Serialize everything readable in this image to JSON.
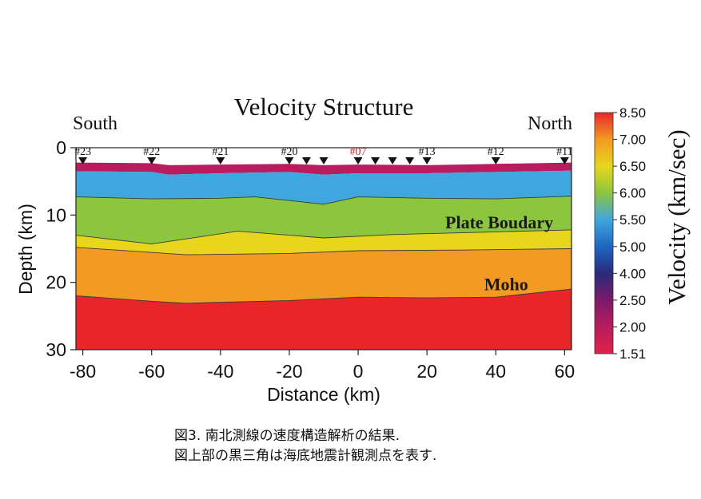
{
  "chart_data": {
    "type": "heatmap",
    "title": "Velocity Structure",
    "xlabel": "Distance (km)",
    "ylabel": "Depth (km)",
    "xlim": [
      -82,
      62
    ],
    "ylim": [
      30,
      0
    ],
    "x_ticks": [
      -80,
      -60,
      -40,
      -20,
      0,
      20,
      40,
      60
    ],
    "y_ticks": [
      0,
      10,
      20,
      30
    ],
    "direction_left": "South",
    "direction_right": "North",
    "colorbar": {
      "label": "Velocity (km/sec)",
      "ticks": [
        "8.50",
        "7.00",
        "6.50",
        "6.00",
        "5.50",
        "5.00",
        "4.00",
        "2.50",
        "2.00",
        "1.51"
      ]
    },
    "colorscale": [
      {
        "v": 1.51,
        "color": "#e2214a"
      },
      {
        "v": 2.0,
        "color": "#b81c5e"
      },
      {
        "v": 2.5,
        "color": "#7d1a6a"
      },
      {
        "v": 4.0,
        "color": "#2a2a7a"
      },
      {
        "v": 5.0,
        "color": "#1e66c0"
      },
      {
        "v": 5.5,
        "color": "#3fa7de"
      },
      {
        "v": 6.0,
        "color": "#8cc63f"
      },
      {
        "v": 6.5,
        "color": "#e8d61c"
      },
      {
        "v": 7.0,
        "color": "#f29a22"
      },
      {
        "v": 8.5,
        "color": "#e8262a"
      }
    ],
    "stations": [
      {
        "name": "#23",
        "x": -80,
        "highlight": false
      },
      {
        "name": "#22",
        "x": -60,
        "highlight": false
      },
      {
        "name": "#21",
        "x": -40,
        "highlight": false
      },
      {
        "name": "#20",
        "x": -20,
        "highlight": false
      },
      {
        "name": "",
        "x": -15,
        "highlight": false
      },
      {
        "name": "",
        "x": -10,
        "highlight": false
      },
      {
        "name": "#07",
        "x": 0,
        "highlight": true
      },
      {
        "name": "",
        "x": 5,
        "highlight": false
      },
      {
        "name": "",
        "x": 10,
        "highlight": false
      },
      {
        "name": "",
        "x": 15,
        "highlight": false
      },
      {
        "name": "#13",
        "x": 20,
        "highlight": false
      },
      {
        "name": "#12",
        "x": 40,
        "highlight": false
      },
      {
        "name": "#11",
        "x": 60,
        "highlight": false
      }
    ],
    "annotations": [
      {
        "text": "Plate Boudary",
        "x": 41,
        "depth": 11
      },
      {
        "text": "Moho",
        "x": 43,
        "depth": 20.2
      }
    ],
    "layers": [
      {
        "name": "seafloor",
        "x": [
          -82,
          -60,
          -55,
          -40,
          -20,
          -10,
          0,
          20,
          40,
          62
        ],
        "depth": [
          2.2,
          2.3,
          2.6,
          2.5,
          2.4,
          2.6,
          2.5,
          2.6,
          2.4,
          2.2
        ]
      },
      {
        "name": "upper-crust-top",
        "x": [
          -82,
          -60,
          -55,
          -40,
          -20,
          -10,
          0,
          20,
          40,
          62
        ],
        "depth": [
          3.5,
          3.6,
          4.0,
          3.8,
          3.6,
          4.0,
          3.8,
          3.8,
          3.6,
          3.4
        ]
      },
      {
        "name": "upper-crust-base",
        "x": [
          -82,
          -60,
          -40,
          -30,
          -10,
          0,
          20,
          40,
          62
        ],
        "depth": [
          7.3,
          7.6,
          7.5,
          7.3,
          8.4,
          7.3,
          7.5,
          7.6,
          7.2
        ]
      },
      {
        "name": "plate-boundary",
        "x": [
          -82,
          -60,
          -35,
          -10,
          10,
          40,
          62
        ],
        "depth": [
          13.0,
          14.3,
          12.4,
          13.4,
          12.9,
          12.5,
          12.2
        ]
      },
      {
        "name": "lower-crust",
        "x": [
          -82,
          -50,
          -20,
          0,
          30,
          62
        ],
        "depth": [
          14.8,
          15.9,
          15.7,
          15.3,
          15.2,
          15.0
        ]
      },
      {
        "name": "moho",
        "x": [
          -82,
          -60,
          -50,
          -20,
          0,
          20,
          40,
          62
        ],
        "depth": [
          22.0,
          22.8,
          23.1,
          22.7,
          22.2,
          22.3,
          22.2,
          21.0
        ]
      }
    ]
  },
  "caption": {
    "line1": "図3. 南北測線の速度構造解析の結果.",
    "line2": "図上部の黒三角は海底地震計観測点を表す."
  }
}
